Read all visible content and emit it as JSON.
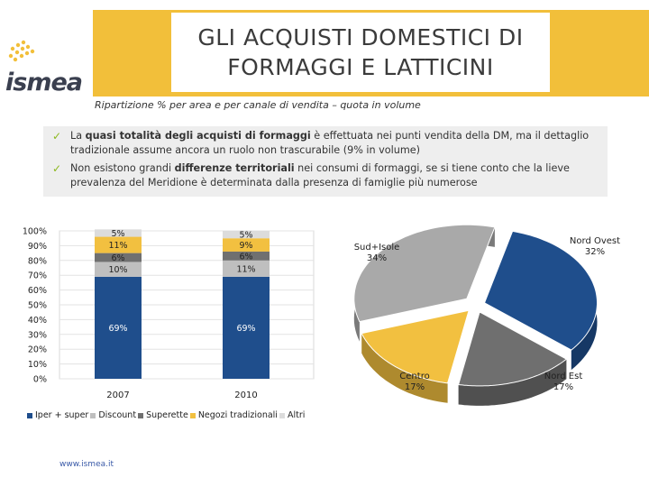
{
  "header": {
    "title_line1": "GLI ACQUISTI DOMESTICI DI",
    "title_line2": "FORMAGGI E LATTICINI",
    "subtitle": "Ripartizione % per area e per canale di vendita – quota in volume",
    "logo_text": "ismea",
    "accent_color": "#f2bf3a"
  },
  "notes": [
    {
      "pre": "La ",
      "bold": "quasi totalità degli acquisti di formaggi",
      "post": " è effettuata nei punti vendita della DM, ma il dettaglio tradizionale assume ancora un ruolo non trascurabile (9% in volume)"
    },
    {
      "pre": "Non esistono grandi ",
      "bold": "differenze territoriali",
      "post": " nei consumi di formaggi, se si tiene conto che la lieve prevalenza del Meridione è determinata dalla presenza di famiglie più numerose"
    }
  ],
  "chart_data": [
    {
      "type": "bar",
      "stacked": true,
      "categories": [
        "2007",
        "2010"
      ],
      "ylim": [
        0,
        100
      ],
      "yticks": [
        "0%",
        "10%",
        "20%",
        "30%",
        "40%",
        "50%",
        "60%",
        "70%",
        "80%",
        "90%",
        "100%"
      ],
      "grid": true,
      "legend_position": "bottom",
      "series": [
        {
          "name": "Iper + super",
          "values": [
            69,
            69
          ],
          "labels": [
            "69%",
            "69%"
          ],
          "color": "#1f4e8c"
        },
        {
          "name": "Discount",
          "values": [
            10,
            11
          ],
          "labels": [
            "10%",
            "11%"
          ],
          "color": "#bfbfbf"
        },
        {
          "name": "Superette",
          "values": [
            6,
            6
          ],
          "labels": [
            "6%",
            "6%"
          ],
          "color": "#707070"
        },
        {
          "name": "Negozi tradizionali",
          "values": [
            11,
            9
          ],
          "labels": [
            "11%",
            "9%"
          ],
          "color": "#f2c040"
        },
        {
          "name": "Altri",
          "values": [
            5,
            5
          ],
          "labels": [
            "5%",
            "5%"
          ],
          "color": "#dcdcdc"
        }
      ]
    },
    {
      "type": "pie",
      "style": "3d-exploded",
      "slices": [
        {
          "label_line1": "Nord Ovest",
          "label_line2": "32%",
          "value": 32,
          "color": "#1f4e8c"
        },
        {
          "label_line1": "Nord Est",
          "label_line2": "17%",
          "value": 17,
          "color": "#6f6f6f"
        },
        {
          "label_line1": "Centro",
          "label_line2": "17%",
          "value": 17,
          "color": "#f2c040"
        },
        {
          "label_line1": "Sud+Isole",
          "label_line2": "34%",
          "value": 34,
          "color": "#a9a9a9"
        }
      ]
    }
  ],
  "footer": {
    "url": "www.ismea.it"
  }
}
